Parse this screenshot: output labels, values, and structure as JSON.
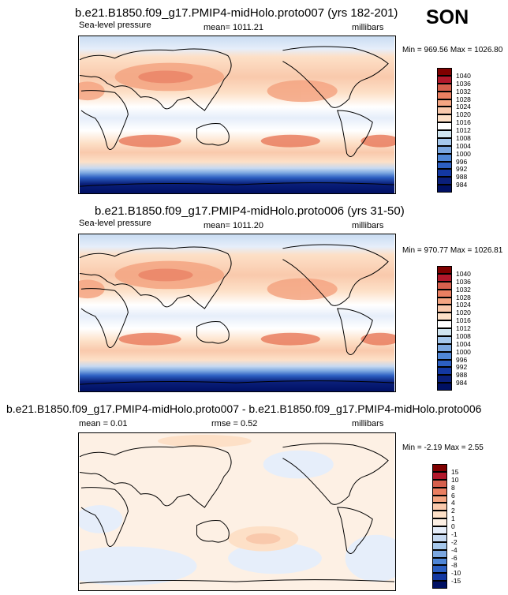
{
  "season": "SON",
  "panels": [
    {
      "title": "b.e21.B1850.f09_g17.PMIP4-midHolo.proto007 (yrs 182-201)",
      "left_label": "Sea-level pressure",
      "center_label": "mean= 1011.21",
      "right_label": "millibars",
      "minmax": "Min = 969.56 Max = 1026.80",
      "colorbar_levels": [
        "1040",
        "1036",
        "1032",
        "1028",
        "1024",
        "1020",
        "1016",
        "1012",
        "1008",
        "1004",
        "1000",
        "996",
        "992",
        "988",
        "984"
      ]
    },
    {
      "title": "b.e21.B1850.f09_g17.PMIP4-midHolo.proto006 (yrs 31-50)",
      "left_label": "Sea-level pressure",
      "center_label": "mean= 1011.20",
      "right_label": "millibars",
      "minmax": "Min = 970.77 Max = 1026.81",
      "colorbar_levels": [
        "1040",
        "1036",
        "1032",
        "1028",
        "1024",
        "1020",
        "1016",
        "1012",
        "1008",
        "1004",
        "1000",
        "996",
        "992",
        "988",
        "984"
      ]
    },
    {
      "title": "b.e21.B1850.f09_g17.PMIP4-midHolo.proto007 - b.e21.B1850.f09_g17.PMIP4-midHolo.proto006",
      "left_label": "mean =   0.01",
      "center_label": "rmse =   0.52",
      "right_label": "millibars",
      "minmax": "Min =  -2.19 Max =   2.55",
      "colorbar_levels": [
        "15",
        "10",
        "8",
        "6",
        "4",
        "2",
        "1",
        "0",
        "-1",
        "-2",
        "-4",
        "-6",
        "-8",
        "-10",
        "-15"
      ]
    }
  ],
  "colors": {
    "slp_boxes": [
      "#7f0000",
      "#b2182b",
      "#d6604d",
      "#ea7f61",
      "#f4a582",
      "#f9c9ac",
      "#fde0c7",
      "#ffffff",
      "#d1e5f0",
      "#a6c8ec",
      "#7ba7e0",
      "#4f86d6",
      "#2c5fc2",
      "#1338a2",
      "#0a1f7a",
      "#001063"
    ],
    "diff_boxes": [
      "#7f0000",
      "#b2182b",
      "#d6604d",
      "#ea7f61",
      "#f4a582",
      "#f9c9ac",
      "#fde0c7",
      "#fdf0e4",
      "#e6eefa",
      "#c6d9f1",
      "#a6c8ec",
      "#7ba7e0",
      "#4f86d6",
      "#2c5fc2",
      "#1338a2",
      "#001063"
    ]
  }
}
